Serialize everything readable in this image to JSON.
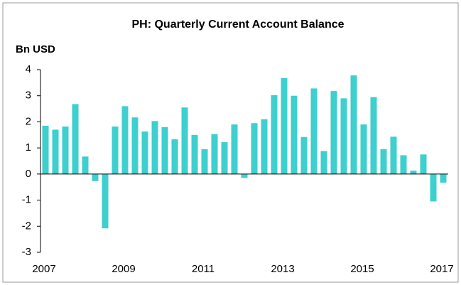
{
  "chart_data": {
    "type": "bar",
    "title": "PH: Quarterly Current Account Balance",
    "y_label": "Bn USD",
    "categories": [
      "2007",
      null,
      null,
      null,
      null,
      null,
      null,
      null,
      "2009",
      null,
      null,
      null,
      null,
      null,
      null,
      null,
      "2011",
      null,
      null,
      null,
      null,
      null,
      null,
      null,
      "2013",
      null,
      null,
      null,
      null,
      null,
      null,
      null,
      "2015",
      null,
      null,
      null,
      null,
      null,
      null,
      null,
      "2017"
    ],
    "values": [
      1.85,
      1.7,
      1.82,
      2.68,
      0.67,
      -0.27,
      -2.08,
      1.82,
      2.6,
      2.17,
      1.63,
      2.03,
      1.8,
      1.33,
      2.55,
      1.5,
      0.95,
      1.53,
      1.22,
      1.9,
      -0.15,
      1.95,
      2.1,
      3.02,
      3.68,
      3.0,
      1.42,
      3.28,
      0.88,
      3.18,
      2.9,
      3.78,
      1.9,
      2.95,
      0.95,
      1.43,
      0.72,
      0.13,
      0.75,
      -1.05,
      -0.33
    ],
    "color": "#3ecfcf",
    "ylim": [
      -3,
      4
    ],
    "yticks": [
      -3,
      -2,
      -1,
      0,
      1,
      2,
      3,
      4
    ]
  }
}
